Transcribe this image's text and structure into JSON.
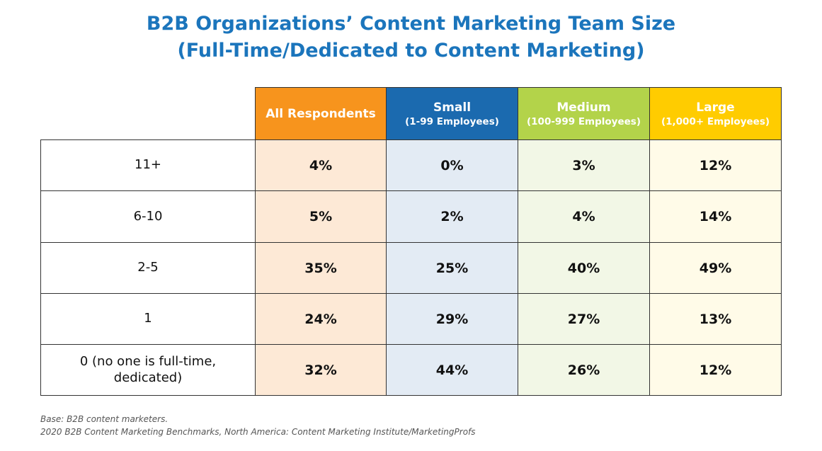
{
  "title": [
    "B2B Organizations’ Content Marketing Team Size",
    "(Full-Time/Dedicated to Content Marketing)"
  ],
  "table": {
    "columns": [
      {
        "name": "All Respondents"
      },
      {
        "name": "Small",
        "sub": "(1-99 Employees)"
      },
      {
        "name": "Medium",
        "sub": "(100-999 Employees)"
      },
      {
        "name": "Large",
        "sub": "(1,000+ Employees)"
      }
    ],
    "rows": [
      {
        "label": "11+",
        "cells": [
          "4%",
          "0%",
          "3%",
          "12%"
        ]
      },
      {
        "label": "6-10",
        "cells": [
          "5%",
          "2%",
          "4%",
          "14%"
        ]
      },
      {
        "label": "2-5",
        "cells": [
          "35%",
          "25%",
          "40%",
          "49%"
        ]
      },
      {
        "label": "1",
        "cells": [
          "24%",
          "29%",
          "27%",
          "13%"
        ]
      },
      {
        "label": "0 (no one is full-time, dedicated)",
        "cells": [
          "32%",
          "44%",
          "26%",
          "12%"
        ]
      }
    ]
  },
  "footnotes": [
    "Base: B2B content marketers.",
    "2020 B2B Content Marketing Benchmarks, North America: Content Marketing Institute/MarketingProfs"
  ]
}
